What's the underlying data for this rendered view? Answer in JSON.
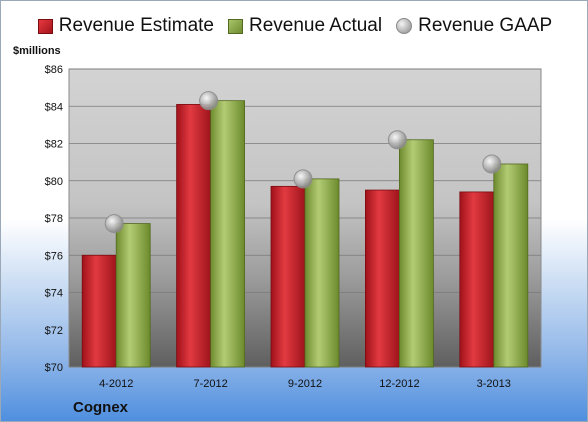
{
  "legend": {
    "estimate": "Revenue Estimate",
    "actual": "Revenue Actual",
    "gaap": "Revenue GAAP"
  },
  "unit_label": "$millions",
  "company": "Cognex",
  "colors": {
    "estimate": "#c8202a",
    "actual": "#8aab45",
    "gaap": "#b8b8b8"
  },
  "chart_data": {
    "type": "bar",
    "categories": [
      "4-2012",
      "7-2012",
      "9-2012",
      "12-2012",
      "3-2013"
    ],
    "series": [
      {
        "name": "Revenue Estimate",
        "values": [
          76.0,
          84.1,
          79.7,
          79.5,
          79.4
        ]
      },
      {
        "name": "Revenue Actual",
        "values": [
          77.7,
          84.3,
          80.1,
          82.2,
          80.9
        ]
      },
      {
        "name": "Revenue GAAP",
        "values": [
          77.7,
          84.3,
          80.1,
          82.2,
          80.9
        ],
        "marker": "circle"
      }
    ],
    "ylabel": "$millions",
    "ylim": [
      70,
      86
    ],
    "yticks": [
      "$70",
      "$72",
      "$74",
      "$76",
      "$78",
      "$80",
      "$82",
      "$84",
      "$86"
    ],
    "grid": true,
    "legend_position": "top"
  }
}
